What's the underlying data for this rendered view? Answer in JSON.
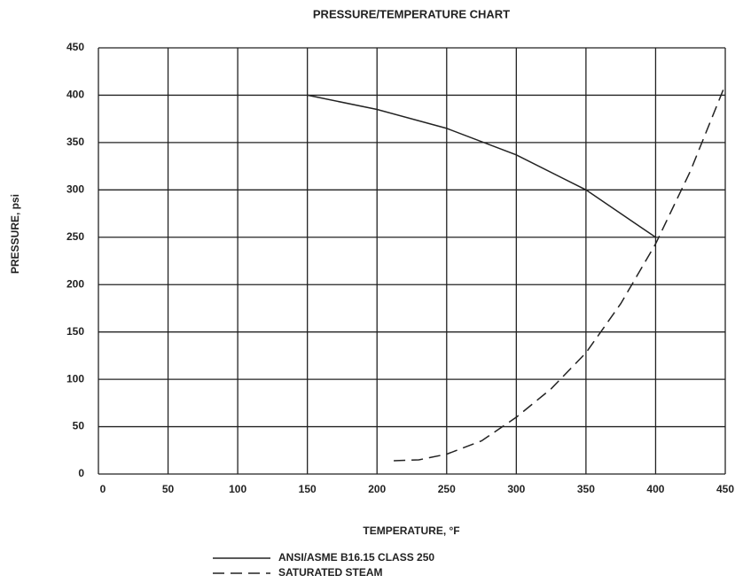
{
  "chart_data": {
    "type": "line",
    "title": "PRESSURE/TEMPERATURE CHART",
    "x_label": "TEMPERATURE, °F",
    "y_label": "PRESSURE, psi",
    "xlim": [
      0,
      450
    ],
    "xticks": [
      0,
      50,
      100,
      150,
      200,
      250,
      300,
      350,
      400,
      450
    ],
    "ylim": [
      0,
      450
    ],
    "yticks": [
      0,
      50,
      100,
      150,
      200,
      250,
      300,
      350,
      400,
      450
    ],
    "grid": true,
    "series": [
      {
        "name": "ANSI/ASME B16.15 CLASS 250",
        "color": "#222222",
        "dash": "solid",
        "x": [
          150,
          200,
          250,
          300,
          350,
          400
        ],
        "values": [
          400,
          385,
          365,
          337,
          300,
          250
        ]
      },
      {
        "name": "SATURATED STEAM",
        "color": "#222222",
        "dash": "dashed",
        "x": [
          212,
          230,
          250,
          275,
          300,
          325,
          350,
          375,
          400,
          425,
          450
        ],
        "values": [
          14,
          15,
          21,
          35,
          60,
          90,
          128,
          180,
          243,
          320,
          411
        ]
      }
    ]
  }
}
